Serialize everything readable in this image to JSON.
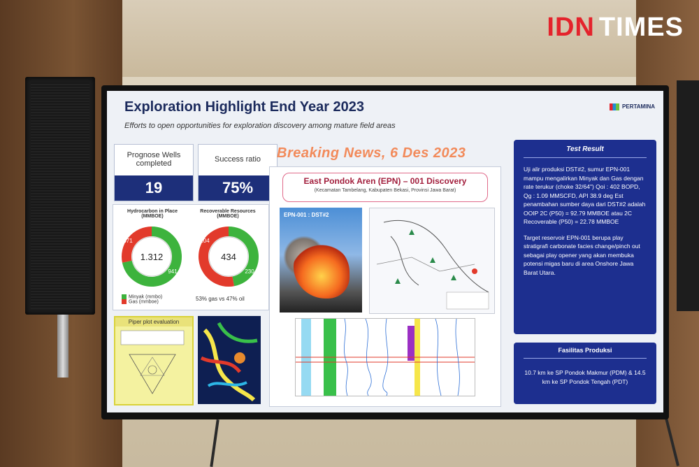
{
  "watermark": {
    "left": "IDN",
    "right": "TIMES"
  },
  "slide": {
    "title": "Exploration Highlight End Year 2023",
    "subtitle": "Efforts to open opportunities for exploration discovery among mature field areas",
    "brand": "PERTAMINA",
    "kpis": [
      {
        "label": "Prognose Wells completed",
        "value": "19"
      },
      {
        "label": "Success ratio",
        "value": "75%"
      }
    ],
    "donuts": [
      {
        "label": "Hydrocarbon in Place (MMBOE)",
        "center": "1.312",
        "segments": [
          {
            "value": 941,
            "color": "#3db33d"
          },
          {
            "value": 371,
            "color": "#e23a2b"
          }
        ],
        "labels": [
          "371",
          "941"
        ]
      },
      {
        "label": "Recoverable Resources (MMBOE)",
        "center": "434",
        "segments": [
          {
            "value": 204,
            "color": "#3db33d"
          },
          {
            "value": 230,
            "color": "#e23a2b"
          }
        ],
        "labels": [
          "204",
          "230"
        ]
      }
    ],
    "legend": [
      {
        "label": "Minyak (mmbo)",
        "color": "#3db33d"
      },
      {
        "label": "Gas (mmboe)",
        "color": "#e23a2b"
      }
    ],
    "ratio_note": "53% gas vs 47% oil",
    "piper_title": "Piper plot evaluation",
    "breaking": "Breaking News, 6 Des 2023",
    "discovery_title": "East Pondok Aren (EPN) – 001 Discovery",
    "discovery_location": "(Kecamatan Tambelang, Kabupaten Bekasi, Provinsi Jawa Barat)",
    "photo_label": "EPN-001 : DST#2",
    "test_result_title": "Test Result",
    "test_result_text": "Uji alir produksi DST#2, sumur EPN-001 mampu mengalirkan Minyak dan Gas dengan rate terukur (choke 32/64\") Qoi : 402 BOPD, Qg : 1.09 MMSCFD, API 38.9 deg Est penambahan sumber daya dari DST#2 adalah OOIP 2C (P50) = 92.79 MMBOE atau 2C Recoverable (P50) = 22.78 MMBOE",
    "test_result_text2": "Target reservoir EPN-001 berupa play stratigrafi carbonate facies change/pinch out sebagai play opener yang akan membuka potensi migas baru di area Onshore Jawa Barat Utara.",
    "facility_title": "Fasilitas Produksi",
    "facility_text": "10.7 km ke SP Pondok Makmur (PDM) & 14.5 km ke SP Pondok Tengah (PDT)"
  }
}
